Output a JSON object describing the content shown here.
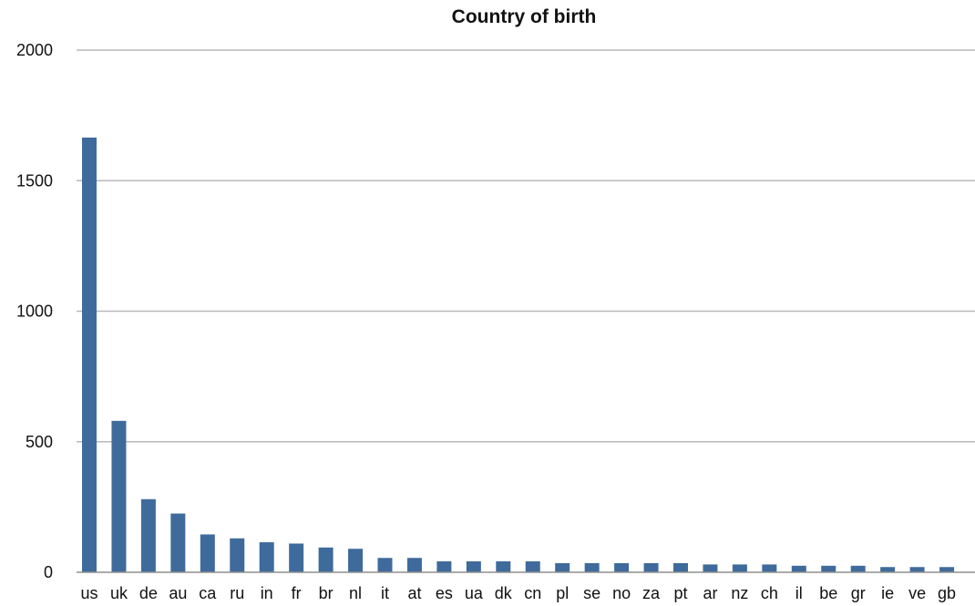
{
  "chart_data": {
    "type": "bar",
    "title": "Country of birth",
    "xlabel": "",
    "ylabel": "",
    "ylim": [
      0,
      2000
    ],
    "yticks": [
      0,
      500,
      1000,
      1500,
      2000
    ],
    "grid": true,
    "legend": "none",
    "bar_color": "#3f6b9c",
    "grid_color": "#b9b9b9",
    "categories": [
      "us",
      "uk",
      "de",
      "au",
      "ca",
      "ru",
      "in",
      "fr",
      "br",
      "nl",
      "it",
      "at",
      "es",
      "ua",
      "dk",
      "cn",
      "pl",
      "se",
      "no",
      "za",
      "pt",
      "ar",
      "nz",
      "ch",
      "il",
      "be",
      "gr",
      "ie",
      "ve",
      "gb"
    ],
    "values": [
      1665,
      580,
      280,
      225,
      145,
      130,
      115,
      110,
      95,
      90,
      55,
      55,
      42,
      42,
      42,
      42,
      35,
      35,
      35,
      35,
      35,
      30,
      30,
      30,
      25,
      25,
      25,
      20,
      20,
      20
    ]
  }
}
